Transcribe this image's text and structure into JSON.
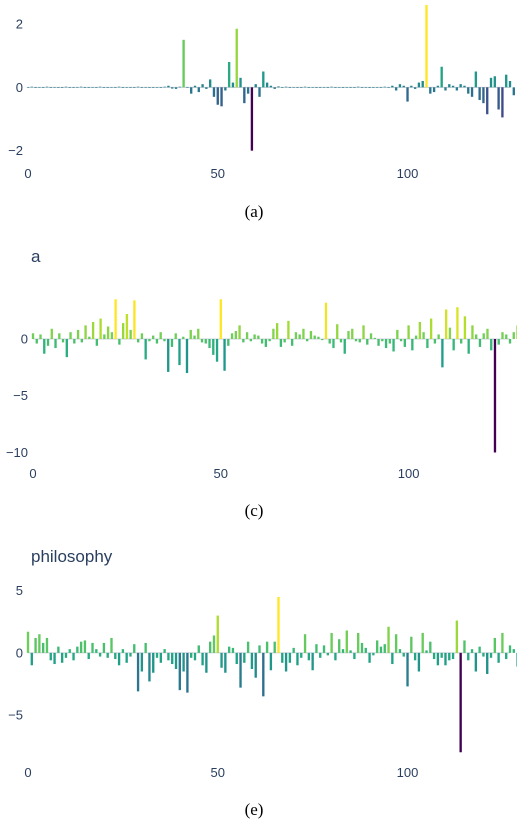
{
  "chart_data": [
    {
      "type": "bar",
      "title": "",
      "caption": "(a)",
      "xlim": [
        0,
        127
      ],
      "ylim": [
        -2.2,
        2.6
      ],
      "xticks": [
        {
          "value": 0,
          "label": "0"
        },
        {
          "value": 50,
          "label": "50"
        },
        {
          "value": 100,
          "label": "100"
        }
      ],
      "yticks": [
        {
          "value": 2,
          "label": "2"
        },
        {
          "value": 0,
          "label": "0"
        },
        {
          "value": -2,
          "label": "−2"
        }
      ],
      "color_range": [
        -2.0,
        2.6
      ],
      "values": [
        0,
        0.02,
        -0.02,
        0.01,
        0,
        0.02,
        -0.01,
        0.01,
        0,
        -0.02,
        0.02,
        0,
        -0.01,
        0.01,
        0.02,
        -0.02,
        0,
        0.01,
        -0.01,
        0.02,
        0,
        -0.01,
        0.01,
        0,
        0.02,
        -0.02,
        0.01,
        0,
        -0.01,
        0.02,
        0,
        0.01,
        -0.02,
        0,
        0.01,
        -0.01,
        0.02,
        0.05,
        -0.04,
        -0.05,
        0.02,
        1.5,
        0,
        -0.2,
        0.05,
        -0.15,
        0.1,
        -0.05,
        0.25,
        -0.3,
        -0.55,
        -0.6,
        -0.1,
        0.8,
        0.15,
        1.85,
        0.3,
        -0.5,
        -0.2,
        -2.0,
        0.1,
        -0.3,
        0.5,
        0.15,
        0.05,
        -0.05,
        0.03,
        0,
        0.02,
        -0.02,
        0.01,
        0,
        -0.01,
        0.02,
        0,
        0.01,
        -0.02,
        0,
        0.01,
        -0.01,
        0.02,
        0,
        0.01,
        -0.02,
        0.01,
        0,
        -0.01,
        0.02,
        0,
        0.01,
        -0.02,
        0,
        0.01,
        -0.01,
        0.02,
        0,
        0.05,
        -0.1,
        0.1,
        0.05,
        -0.45,
        0.05,
        -0.05,
        0.15,
        0.2,
        2.6,
        -0.2,
        -0.15,
        0.05,
        0.65,
        -0.1,
        0.1,
        0.05,
        -0.1,
        0.1,
        0.05,
        -0.2,
        -0.3,
        0.5,
        -0.4,
        -0.5,
        -0.85,
        0.3,
        0.35,
        -0.7,
        -0.95,
        0.4,
        0.2,
        -0.25
      ]
    },
    {
      "type": "bar",
      "title": "a",
      "caption": "(c)",
      "xlim": [
        0,
        127
      ],
      "ylim": [
        -10.4,
        3.7
      ],
      "xticks": [
        {
          "value": 0,
          "label": "0"
        },
        {
          "value": 50,
          "label": "50"
        },
        {
          "value": 100,
          "label": "100"
        }
      ],
      "yticks": [
        {
          "value": 0,
          "label": "0"
        },
        {
          "value": -5,
          "label": "−5"
        },
        {
          "value": -10,
          "label": "−10"
        }
      ],
      "color_range": [
        -10.0,
        3.5
      ],
      "values": [
        0.5,
        -0.4,
        0.4,
        -1.3,
        -0.6,
        0.9,
        -0.8,
        0.5,
        -0.3,
        -1.6,
        0.6,
        -0.4,
        0.8,
        -0.3,
        1.2,
        0.2,
        1.5,
        -0.6,
        1.8,
        0.4,
        1.1,
        0.6,
        3.5,
        -0.5,
        1.4,
        2.2,
        0.8,
        3.4,
        -0.3,
        0.5,
        -1.8,
        -0.2,
        0.3,
        -0.4,
        0.6,
        -0.2,
        -2.9,
        -0.7,
        0.5,
        -2.3,
        0.2,
        -3.0,
        0.8,
        0.3,
        0.9,
        -0.3,
        -0.4,
        -0.8,
        -1.4,
        -2.0,
        3.5,
        -2.8,
        -0.6,
        0.5,
        0.7,
        1.2,
        -0.3,
        0.6,
        -0.2,
        0.4,
        0.3,
        -0.4,
        -0.7,
        -0.2,
        0.9,
        1.4,
        -0.7,
        -0.3,
        1.6,
        -0.6,
        0.6,
        0.4,
        0.9,
        -0.2,
        0.7,
        0.3,
        0.2,
        -0.1,
        3.2,
        -0.4,
        -0.8,
        1.3,
        -0.3,
        -1.3,
        0.7,
        0.9,
        -0.2,
        -0.3,
        1.2,
        -0.5,
        0.5,
        0.1,
        -0.6,
        -0.2,
        -0.8,
        -0.4,
        -1.1,
        0.8,
        -0.2,
        -0.7,
        1.2,
        -1.0,
        0.3,
        1.5,
        0.6,
        -0.8,
        1.8,
        -0.4,
        0.4,
        -2.5,
        2.6,
        1.0,
        -1.0,
        2.8,
        -0.4,
        2.0,
        -1.3,
        1.2,
        0.4,
        -0.7,
        0.5,
        0.9,
        -1.0,
        -10.0,
        -0.5,
        0.6,
        0.4,
        -0.4,
        0.6,
        1.2,
        -0.3
      ]
    },
    {
      "type": "bar",
      "title": "philosophy",
      "caption": "(e)",
      "xlim": [
        0,
        127
      ],
      "ylim": [
        -8.3,
        5.3
      ],
      "xticks": [
        {
          "value": 0,
          "label": "0"
        },
        {
          "value": 50,
          "label": "50"
        },
        {
          "value": 100,
          "label": "100"
        }
      ],
      "yticks": [
        {
          "value": 5,
          "label": "5"
        },
        {
          "value": 0,
          "label": "0"
        },
        {
          "value": -5,
          "label": "−5"
        }
      ],
      "color_range": [
        -8.0,
        4.5
      ],
      "values": [
        1.7,
        -1.0,
        1.2,
        1.5,
        0.8,
        1.2,
        -0.6,
        -0.9,
        0.5,
        -0.8,
        -0.4,
        0.3,
        -0.6,
        0.5,
        0.9,
        1.0,
        -0.5,
        0.8,
        0.3,
        -0.3,
        0.8,
        -0.4,
        1.2,
        -0.5,
        -1.0,
        0.3,
        -0.8,
        -0.3,
        0.7,
        -3.1,
        -1.5,
        0.8,
        -2.3,
        -1.6,
        -0.4,
        -0.8,
        0.3,
        -0.6,
        -0.9,
        -1.3,
        -3.0,
        -1.5,
        -3.2,
        -0.4,
        -0.6,
        0.6,
        -1.0,
        -1.6,
        0.9,
        1.4,
        3.0,
        -1.2,
        -1.6,
        0.5,
        0.4,
        -0.9,
        -2.8,
        -0.8,
        0.9,
        -1.3,
        -2.0,
        0.6,
        -3.5,
        0.9,
        -1.4,
        0.9,
        4.5,
        -0.8,
        -1.5,
        -0.8,
        0.4,
        -1.0,
        -0.4,
        1.5,
        -0.6,
        -1.4,
        0.7,
        -0.4,
        0.6,
        -0.2,
        1.6,
        -0.6,
        1.1,
        0.3,
        1.8,
        0.2,
        -0.5,
        1.6,
        0.8,
        0.4,
        -0.8,
        -0.2,
        1.0,
        0.5,
        0.7,
        2.1,
        -0.9,
        1.5,
        0.3,
        -0.3,
        -2.7,
        1.3,
        -0.6,
        -1.5,
        1.6,
        0.2,
        0.9,
        -0.5,
        -1.0,
        -0.4,
        -1.0,
        -0.6,
        -0.5,
        2.6,
        -8.0,
        1.0,
        -0.6,
        0.3,
        -1.5,
        0.5,
        -0.3,
        -1.7,
        -0.4,
        1.2,
        -0.8,
        1.6,
        -0.5,
        0.6,
        0.3,
        -1.1
      ]
    }
  ]
}
